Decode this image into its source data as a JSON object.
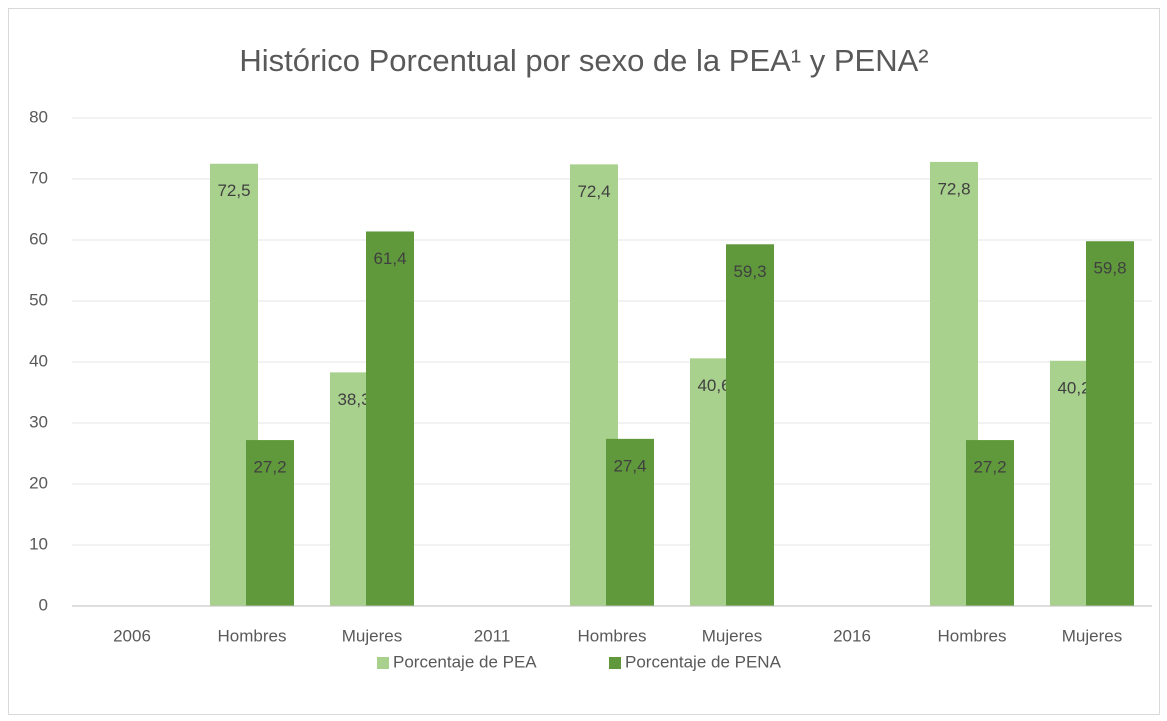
{
  "chart_data": {
    "type": "bar",
    "title": "Histórico Porcentual por sexo de la PEA¹ y PENA²",
    "categories": [
      "2006",
      "Hombres",
      "Mujeres",
      "2011",
      "Hombres",
      "Mujeres",
      "2016",
      "Hombres",
      "Mujeres"
    ],
    "series": [
      {
        "name": "Porcentaje de PEA",
        "color": "#a9d18e",
        "values": [
          null,
          72.5,
          38.3,
          null,
          72.4,
          40.6,
          null,
          72.8,
          40.2
        ],
        "value_labels": [
          null,
          "72,5",
          "38,3",
          null,
          "72,4",
          "40,6",
          null,
          "72,8",
          "40,2"
        ]
      },
      {
        "name": "Porcentaje de PENA",
        "color": "#5f993b",
        "values": [
          null,
          27.2,
          61.4,
          null,
          27.4,
          59.3,
          null,
          27.2,
          59.8
        ],
        "value_labels": [
          null,
          "27,2",
          "61,4",
          null,
          "27,4",
          "59,3",
          null,
          "27,2",
          "59,8"
        ]
      }
    ],
    "ylim": [
      0,
      80
    ],
    "yticks": [
      0,
      10,
      20,
      30,
      40,
      50,
      60,
      70,
      80
    ],
    "grid": true,
    "legend": "bottom"
  }
}
